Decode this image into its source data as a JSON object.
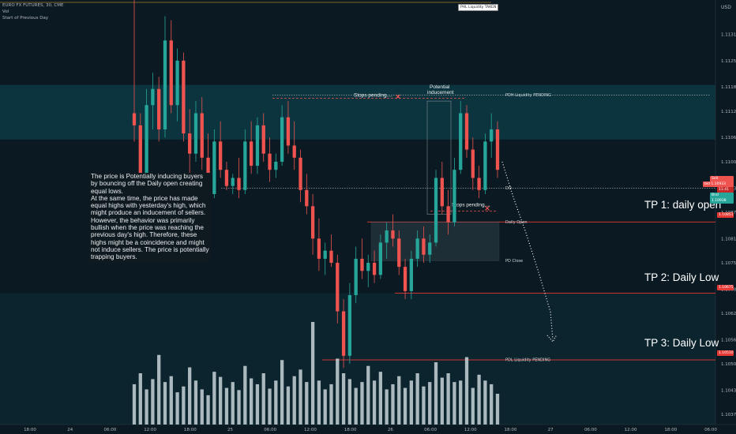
{
  "header": {
    "symbol": "EURO FX FUTURES, 30, CME",
    "vol": "Vol",
    "session": "Start of Previous Day"
  },
  "currency": "USD",
  "note": "The price is Potentially inducing buyers by bouncing off the Daily open creating equal lows.\nAt the same time, the price has made equal highs with yesterday's high, which might produce an inducement of sellers. However, the behavior was primarily bullish when the price was reaching the previous day's high. Therefore, these highs might be a coincidence and might not induce sellers. The price is potentially trapping buyers.",
  "annotations": {
    "pdh_liquidity_top": "PHL Liquidity TAKEN",
    "stops_pending_top": "Stops pending....",
    "potential": "Potential",
    "inducement": "inducement",
    "stops_pending_bottom": "Stops pending....",
    "pdh_label": "PDH Liquidity PENDING",
    "do_label": "DO",
    "daily_open_label": "Daily Open",
    "pd_close_label": "PD Close",
    "pdl_label": "PDL Liquidity PENDING",
    "tp1": "TP 1: daily open",
    "tp2": "TP 2: Daily Low",
    "tp3": "TP 3: Daily Low"
  },
  "price_tags": {
    "sell_label": "Sell",
    "sell_value": "1.10935",
    "mid_label": "bid 1.10933",
    "time_value": "11:41",
    "buy_label": "Bnd",
    "buy_value": "1.10938",
    "tp1_value": "1.10851",
    "tp2_value": "1.10675",
    "tp3_value": "1.10510"
  },
  "colors": {
    "bull": "#26a69a",
    "bear": "#ef5350",
    "level": "#e53935",
    "band": "#0f4a57",
    "bg": "#0b1a22",
    "volume": "#c8d4d8"
  },
  "chart_data": {
    "type": "candlestick",
    "y_ticks": [
      "1.11315",
      "1.11250",
      "1.11185",
      "1.11125",
      "1.11060",
      "1.11000",
      "1.10935",
      "1.10875",
      "1.10810",
      "1.10750",
      "1.10685",
      "1.10625",
      "1.10560",
      "1.10500",
      "1.10435",
      "1.10375"
    ],
    "ylim": [
      1.1035,
      1.114
    ],
    "x_ticks": [
      "18:00",
      "24",
      "06:00",
      "12:00",
      "18:00",
      "25",
      "06:00",
      "12:00",
      "18:00",
      "26",
      "06:00",
      "12:00",
      "18:00",
      "27",
      "06:00",
      "12:00",
      "18:00",
      "06:00"
    ],
    "levels": {
      "pdh": 1.11165,
      "daily_open": 1.10851,
      "pd_close": 1.10755,
      "tp2": 1.10675,
      "pdl": 1.1051
    },
    "candles": [
      [
        1.1112,
        1.115,
        1.1105,
        1.1109
      ],
      [
        1.1109,
        1.1112,
        1.1092,
        1.1096
      ],
      [
        1.1096,
        1.1118,
        1.1094,
        1.1114
      ],
      [
        1.1114,
        1.1122,
        1.1108,
        1.1118
      ],
      [
        1.1118,
        1.1121,
        1.1105,
        1.1108
      ],
      [
        1.1108,
        1.1136,
        1.1106,
        1.113
      ],
      [
        1.113,
        1.1135,
        1.1112,
        1.1114
      ],
      [
        1.1114,
        1.1128,
        1.111,
        1.1125
      ],
      [
        1.1125,
        1.1127,
        1.1105,
        1.1107
      ],
      [
        1.1107,
        1.1113,
        1.1095,
        1.1102
      ],
      [
        1.1102,
        1.1115,
        1.11,
        1.1112
      ],
      [
        1.1112,
        1.1116,
        1.1098,
        1.1101
      ],
      [
        1.1101,
        1.1107,
        1.1088,
        1.1092
      ],
      [
        1.1092,
        1.1108,
        1.1091,
        1.1105
      ],
      [
        1.1105,
        1.111,
        1.1096,
        1.1098
      ],
      [
        1.1098,
        1.11,
        1.1093,
        1.1094
      ],
      [
        1.1094,
        1.1097,
        1.1092,
        1.1096
      ],
      [
        1.1096,
        1.1101,
        1.1091,
        1.1093
      ],
      [
        1.1093,
        1.1108,
        1.1092,
        1.1105
      ],
      [
        1.1105,
        1.111,
        1.1097,
        1.1099
      ],
      [
        1.1099,
        1.1111,
        1.1097,
        1.1109
      ],
      [
        1.1109,
        1.1112,
        1.11,
        1.1102
      ],
      [
        1.1102,
        1.1106,
        1.1095,
        1.1098
      ],
      [
        1.1098,
        1.1102,
        1.1096,
        1.11
      ],
      [
        1.11,
        1.1114,
        1.1099,
        1.1111
      ],
      [
        1.1111,
        1.1115,
        1.1102,
        1.1104
      ],
      [
        1.1104,
        1.111,
        1.1098,
        1.1101
      ],
      [
        1.1101,
        1.1103,
        1.109,
        1.1093
      ],
      [
        1.1093,
        1.1097,
        1.1087,
        1.1089
      ],
      [
        1.1089,
        1.1092,
        1.1077,
        1.1081
      ],
      [
        1.1081,
        1.1086,
        1.1073,
        1.1076
      ],
      [
        1.1076,
        1.108,
        1.1072,
        1.1078
      ],
      [
        1.1078,
        1.1082,
        1.1074,
        1.1075
      ],
      [
        1.1075,
        1.1077,
        1.106,
        1.1063
      ],
      [
        1.1063,
        1.1066,
        1.1049,
        1.1052
      ],
      [
        1.1052,
        1.107,
        1.105,
        1.1067
      ],
      [
        1.1067,
        1.1079,
        1.1065,
        1.1076
      ],
      [
        1.1076,
        1.1081,
        1.1071,
        1.1073
      ],
      [
        1.1073,
        1.1077,
        1.1069,
        1.1075
      ],
      [
        1.1075,
        1.1078,
        1.107,
        1.1072
      ],
      [
        1.1072,
        1.1082,
        1.1071,
        1.108
      ],
      [
        1.108,
        1.1085,
        1.1076,
        1.1083
      ],
      [
        1.1083,
        1.1087,
        1.1079,
        1.1081
      ],
      [
        1.1081,
        1.1083,
        1.1072,
        1.1074
      ],
      [
        1.1074,
        1.1076,
        1.1066,
        1.1068
      ],
      [
        1.1068,
        1.1078,
        1.1066,
        1.1076
      ],
      [
        1.1076,
        1.1083,
        1.1074,
        1.1081
      ],
      [
        1.1081,
        1.1084,
        1.1075,
        1.1077
      ],
      [
        1.1077,
        1.1082,
        1.1075,
        1.108
      ],
      [
        1.108,
        1.1098,
        1.1079,
        1.1096
      ],
      [
        1.1096,
        1.11,
        1.1087,
        1.1089
      ],
      [
        1.1089,
        1.1093,
        1.1082,
        1.1085
      ],
      [
        1.1085,
        1.1101,
        1.1084,
        1.1098
      ],
      [
        1.1098,
        1.1115,
        1.1097,
        1.1112
      ],
      [
        1.1112,
        1.1114,
        1.1101,
        1.1103
      ],
      [
        1.1103,
        1.1106,
        1.1093,
        1.1096
      ],
      [
        1.1096,
        1.1099,
        1.1091,
        1.1093
      ],
      [
        1.1093,
        1.1107,
        1.1092,
        1.1105
      ],
      [
        1.1105,
        1.1112,
        1.1101,
        1.1108
      ],
      [
        1.1108,
        1.111,
        1.1096,
        1.1098
      ]
    ],
    "volume": [
      55,
      70,
      48,
      62,
      95,
      58,
      66,
      44,
      52,
      78,
      60,
      48,
      40,
      72,
      65,
      50,
      58,
      47,
      80,
      63,
      55,
      70,
      49,
      60,
      88,
      52,
      66,
      75,
      58,
      140,
      60,
      48,
      55,
      90,
      70,
      62,
      50,
      58,
      80,
      60,
      72,
      48,
      55,
      66,
      50,
      60,
      70,
      52,
      58,
      85,
      64,
      70,
      58,
      60,
      92,
      50,
      68,
      60,
      55,
      42
    ]
  }
}
